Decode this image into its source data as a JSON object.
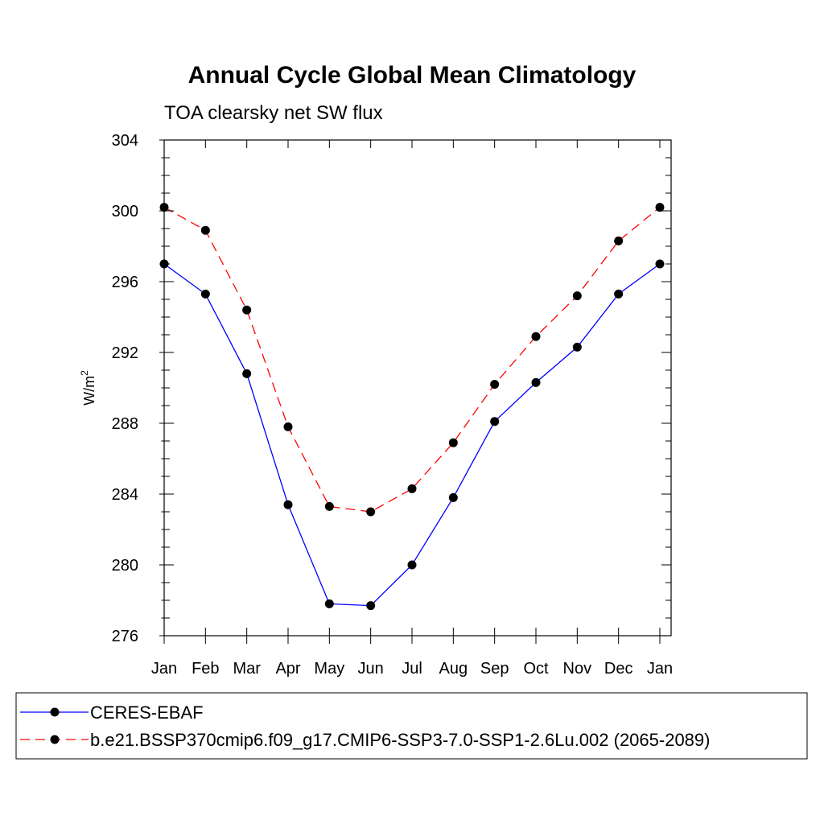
{
  "chart_data": {
    "type": "line",
    "title": "Annual Cycle Global Mean Climatology",
    "subtitle": "TOA clearsky net SW flux",
    "ylabel": "W/m",
    "ylabel_sup": "2",
    "xlabel": "",
    "categories": [
      "Jan",
      "Feb",
      "Mar",
      "Apr",
      "May",
      "Jun",
      "Jul",
      "Aug",
      "Sep",
      "Oct",
      "Nov",
      "Dec",
      "Jan"
    ],
    "ylim": [
      276,
      304
    ],
    "yticks": [
      "276",
      "280",
      "284",
      "288",
      "292",
      "296",
      "300",
      "304"
    ],
    "series": [
      {
        "name": "CERES-EBAF",
        "color": "#0000ff",
        "dash": "solid",
        "values": [
          297.0,
          295.3,
          290.8,
          283.4,
          277.8,
          277.7,
          280.0,
          283.8,
          288.1,
          290.3,
          292.3,
          295.3,
          297.0
        ]
      },
      {
        "name": "b.e21.BSSP370cmip6.f09_g17.CMIP6-SSP3-7.0-SSP1-2.6Lu.002 (2065-2089)",
        "color": "#ff0000",
        "dash": "dashed",
        "values": [
          300.2,
          298.9,
          294.4,
          287.8,
          283.3,
          283.0,
          284.3,
          286.9,
          290.2,
          292.9,
          295.2,
          298.3,
          300.2
        ]
      }
    ],
    "legend_position": "bottom"
  }
}
